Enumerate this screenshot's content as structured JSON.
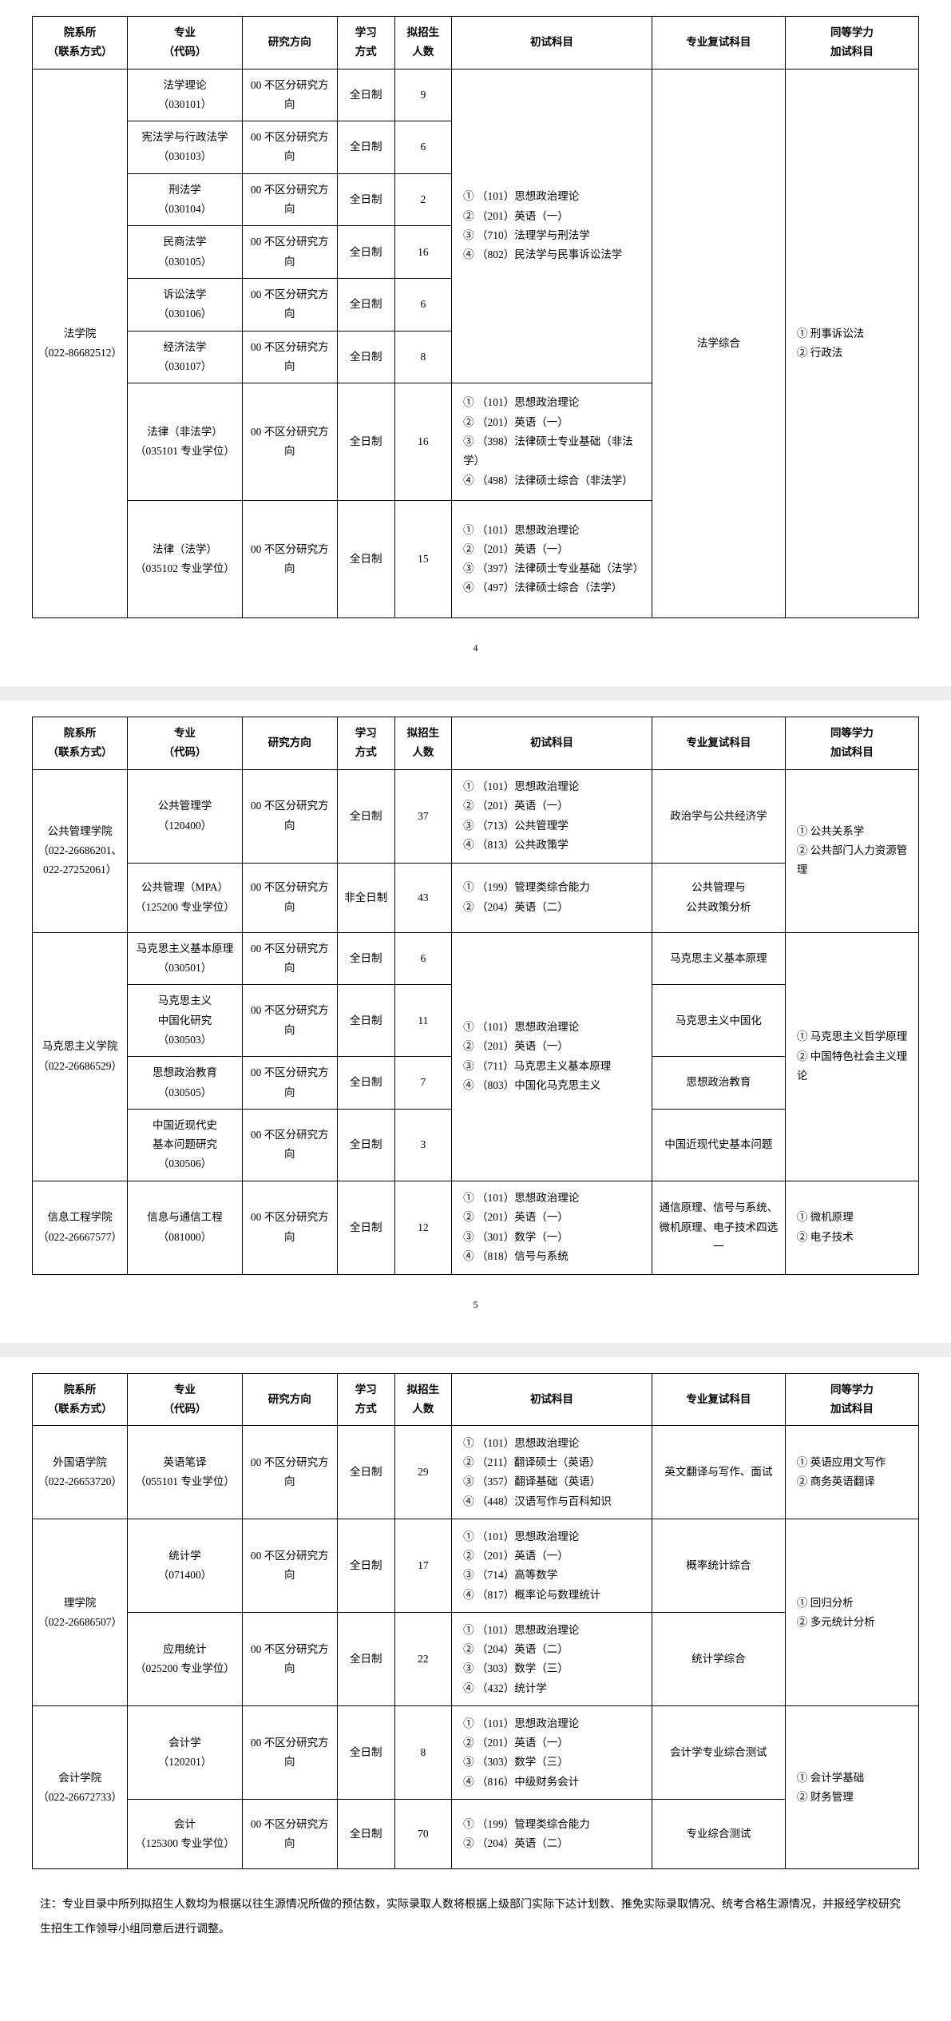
{
  "headers": {
    "h1": "院系所\n（联系方式）",
    "h2": "专业\n（代码）",
    "h3": "研究方向",
    "h4": "学习\n方式",
    "h5": "拟招生\n人数",
    "h6": "初试科目",
    "h7": "专业复试科目",
    "h8": "同等学力\n加试科目"
  },
  "p4": {
    "dept1": "法学院\n（022-86682512）",
    "r1_major": "法学理论\n（030101）",
    "r1_dir": "00 不区分研究方向",
    "r1_mode": "全日制",
    "r1_num": "9",
    "r2_major": "宪法学与行政法学\n（030103）",
    "r2_dir": "00 不区分研究方向",
    "r2_mode": "全日制",
    "r2_num": "6",
    "r3_major": "刑法学\n（030104）",
    "r3_dir": "00 不区分研究方向",
    "r3_mode": "全日制",
    "r3_num": "2",
    "r4_major": "民商法学\n（030105）",
    "r4_dir": "00 不区分研究方向",
    "r4_mode": "全日制",
    "r4_num": "16",
    "r5_major": "诉讼法学\n（030106）",
    "r5_dir": "00 不区分研究方向",
    "r5_mode": "全日制",
    "r5_num": "6",
    "r6_major": "经济法学\n（030107）",
    "r6_dir": "00 不区分研究方向",
    "r6_mode": "全日制",
    "r6_num": "8",
    "exam1": "① （101）思想政治理论\n② （201）英语（一）\n③ （710）法理学与刑法学\n④ （802）民法学与民事诉讼法学",
    "retest1": "法学综合",
    "extra1": "① 刑事诉讼法\n② 行政法",
    "r7_major": "法律（非法学）\n（035101  专业学位）",
    "r7_dir": "00 不区分研究方向",
    "r7_mode": "全日制",
    "r7_num": "16",
    "exam7": "① （101）思想政治理论\n② （201）英语（一）\n③ （398）法律硕士专业基础（非法学）\n④ （498）法律硕士综合（非法学）",
    "r8_major": "法律（法学）\n（035102  专业学位）",
    "r8_dir": "00 不区分研究方向",
    "r8_mode": "全日制",
    "r8_num": "15",
    "exam8": "① （101）思想政治理论\n② （201）英语（一）\n③ （397）法律硕士专业基础（法学）\n④ （497）法律硕士综合（法学）",
    "num": "4"
  },
  "p5": {
    "dept1": "公共管理学院\n（022-26686201、022-27252061）",
    "r1_major": "公共管理学\n（120400）",
    "r1_dir": "00 不区分研究方向",
    "r1_mode": "全日制",
    "r1_num": "37",
    "r1_exam": "① （101）思想政治理论\n② （201）英语（一）\n③ （713）公共管理学\n④ （813）公共政策学",
    "r1_retest": "政治学与公共经济学",
    "extra1": "① 公共关系学\n② 公共部门人力资源管理",
    "r2_major": "公共管理（MPA）\n（125200 专业学位）",
    "r2_dir": "00 不区分研究方向",
    "r2_mode": "非全日制",
    "r2_num": "43",
    "r2_exam": "① （199）管理类综合能力\n② （204）英语（二）",
    "r2_retest": "公共管理与\n公共政策分析",
    "dept2": "马克思主义学院\n（022-26686529）",
    "r3_major": "马克思主义基本原理\n（030501）",
    "r3_dir": "00 不区分研究方向",
    "r3_mode": "全日制",
    "r3_num": "6",
    "exam2": "① （101）思想政治理论\n② （201）英语（一）\n③ （711）马克思主义基本原理\n④ （803）中国化马克思主义",
    "r3_retest": "马克思主义基本原理",
    "extra2": "① 马克思主义哲学原理\n② 中国特色社会主义理论",
    "r4_major": "马克思主义\n中国化研究\n（030503）",
    "r4_dir": "00 不区分研究方向",
    "r4_mode": "全日制",
    "r4_num": "11",
    "r4_retest": "马克思主义中国化",
    "r5_major": "思想政治教育\n（030505）",
    "r5_dir": "00 不区分研究方向",
    "r5_mode": "全日制",
    "r5_num": "7",
    "r5_retest": "思想政治教育",
    "r6_major": "中国近现代史\n基本问题研究\n（030506）",
    "r6_dir": "00 不区分研究方向",
    "r6_mode": "全日制",
    "r6_num": "3",
    "r6_retest": "中国近现代史基本问题",
    "dept3": "信息工程学院\n（022-26667577）",
    "r7_major": "信息与通信工程\n（081000）",
    "r7_dir": "00 不区分研究方向",
    "r7_mode": "全日制",
    "r7_num": "12",
    "r7_exam": "① （101）思想政治理论\n② （201）英语（一）\n③ （301）数学（一）\n④ （818）信号与系统",
    "r7_retest": "通信原理、信号与系统、微机原理、电子技术四选一",
    "extra3": "① 微机原理\n② 电子技术",
    "num": "5"
  },
  "p6": {
    "dept1": "外国语学院\n（022-26653720）",
    "r1_major": "英语笔译\n（055101 专业学位）",
    "r1_dir": "00 不区分研究方向",
    "r1_mode": "全日制",
    "r1_num": "29",
    "r1_exam": "① （101）思想政治理论\n② （211）翻译硕士（英语）\n③ （357）翻译基础（英语）\n④ （448）汉语写作与百科知识",
    "r1_retest": "英文翻译与写作、面试",
    "extra1": "① 英语应用文写作\n② 商务英语翻译",
    "dept2": "理学院\n（022-26686507）",
    "r2_major": "统计学\n（071400）",
    "r2_dir": "00 不区分研究方向",
    "r2_mode": "全日制",
    "r2_num": "17",
    "r2_exam": "① （101）思想政治理论\n② （201）英语（一）\n③ （714）高等数学\n④ （817）概率论与数理统计",
    "r2_retest": "概率统计综合",
    "extra2": "① 回归分析\n② 多元统计分析",
    "r3_major": "应用统计\n（025200 专业学位）",
    "r3_dir": "00 不区分研究方向",
    "r3_mode": "全日制",
    "r3_num": "22",
    "r3_exam": "① （101）思想政治理论\n② （204）英语（二）\n③ （303）数学（三）\n④ （432）统计学",
    "r3_retest": "统计学综合",
    "dept3": "会计学院\n（022-26672733）",
    "r4_major": "会计学\n（120201）",
    "r4_dir": "00 不区分研究方向",
    "r4_mode": "全日制",
    "r4_num": "8",
    "r4_exam": "① （101）思想政治理论\n② （201）英语（一）\n③ （303）数学（三）\n④ （816）中级财务会计",
    "r4_retest": "会计学专业综合测试",
    "extra3": "① 会计学基础\n② 财务管理",
    "r5_major": "会计\n（125300 专业学位）",
    "r5_dir": "00 不区分研究方向",
    "r5_mode": "全日制",
    "r5_num": "70",
    "r5_exam": "① （199）管理类综合能力\n② （204）英语（二）",
    "r5_retest": "专业综合测试",
    "footnote": "注：专业目录中所列拟招生人数均为根据以往生源情况所做的预估数，实际录取人数将根据上级部门实际下达计划数、推免实际录取情况、统考合格生源情况，并报经学校研究生招生工作领导小组同意后进行调整。"
  }
}
